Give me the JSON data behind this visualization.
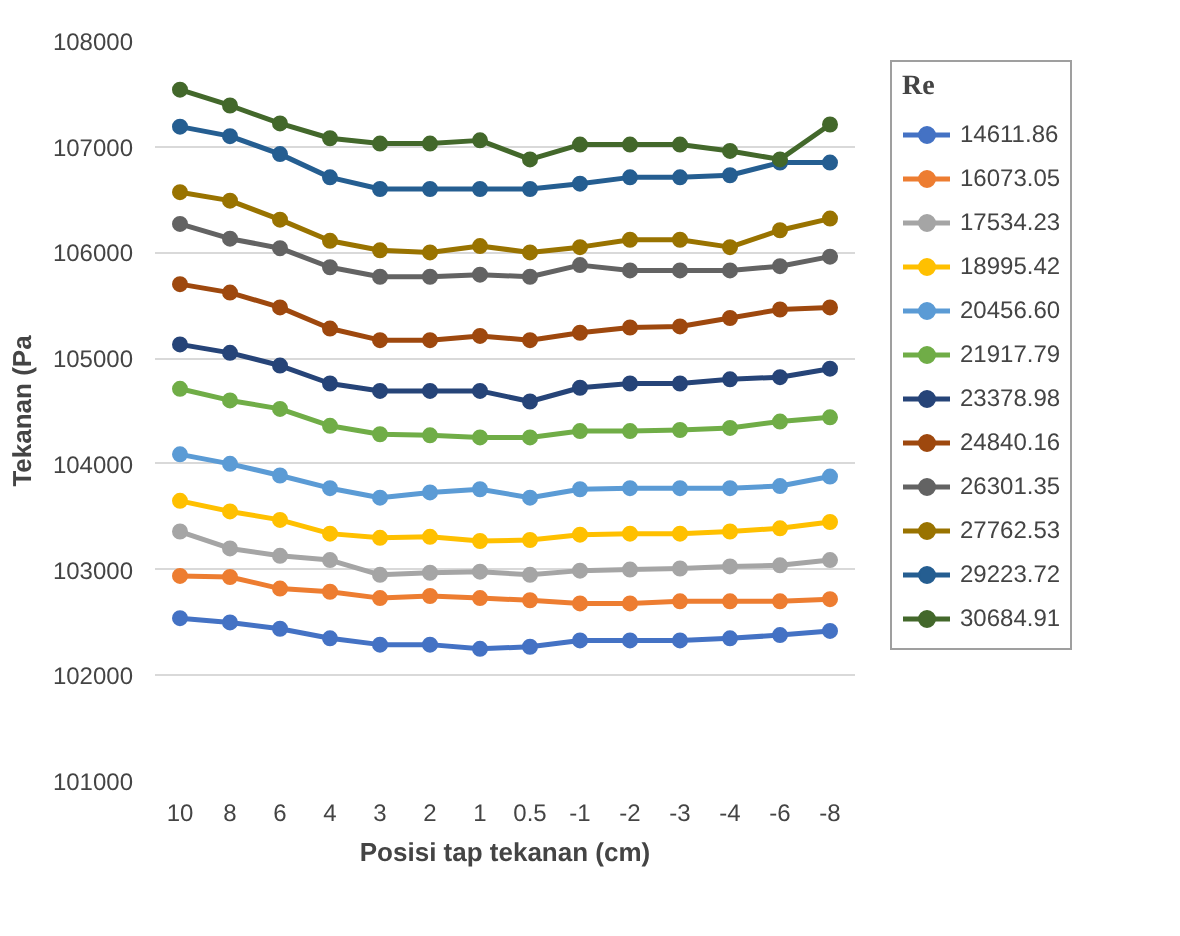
{
  "chart_data": {
    "type": "line",
    "xlabel": "Posisi tap tekanan (cm)",
    "ylabel": "Tekanan (Pa",
    "legend_title": "Re",
    "legend": "right",
    "grid": "y",
    "marker": "circle",
    "line_style": "solid",
    "categories": [
      "10",
      "8",
      "6",
      "4",
      "3",
      "2",
      "1",
      "0.5",
      "-1",
      "-2",
      "-3",
      "-4",
      "-6",
      "-8"
    ],
    "ylim": [
      101000,
      108000
    ],
    "yticks": [
      101000,
      102000,
      103000,
      104000,
      105000,
      106000,
      107000,
      108000
    ],
    "series": [
      {
        "name": "14611.86",
        "color": "#4472c4",
        "values": [
          102540,
          102500,
          102440,
          102350,
          102290,
          102290,
          102250,
          102270,
          102330,
          102330,
          102330,
          102350,
          102380,
          102420
        ]
      },
      {
        "name": "16073.05",
        "color": "#ed7d31",
        "values": [
          102940,
          102930,
          102820,
          102790,
          102730,
          102750,
          102730,
          102710,
          102680,
          102680,
          102700,
          102700,
          102700,
          102720
        ]
      },
      {
        "name": "17534.23",
        "color": "#a5a5a5",
        "values": [
          103360,
          103200,
          103130,
          103090,
          102950,
          102970,
          102980,
          102950,
          102990,
          103000,
          103010,
          103030,
          103040,
          103090
        ]
      },
      {
        "name": "18995.42",
        "color": "#ffc000",
        "values": [
          103650,
          103550,
          103470,
          103340,
          103300,
          103310,
          103270,
          103280,
          103330,
          103340,
          103340,
          103360,
          103390,
          103450
        ]
      },
      {
        "name": "20456.60",
        "color": "#5b9bd5",
        "values": [
          104090,
          104000,
          103890,
          103770,
          103680,
          103730,
          103760,
          103680,
          103760,
          103770,
          103770,
          103770,
          103790,
          103880
        ]
      },
      {
        "name": "21917.79",
        "color": "#70ad47",
        "values": [
          104710,
          104600,
          104520,
          104360,
          104280,
          104270,
          104250,
          104250,
          104310,
          104310,
          104320,
          104340,
          104400,
          104440
        ]
      },
      {
        "name": "23378.98",
        "color": "#264478",
        "values": [
          105130,
          105050,
          104930,
          104760,
          104690,
          104690,
          104690,
          104590,
          104720,
          104760,
          104760,
          104800,
          104820,
          104900
        ]
      },
      {
        "name": "24840.16",
        "color": "#9e480e",
        "values": [
          105700,
          105620,
          105480,
          105280,
          105170,
          105170,
          105210,
          105170,
          105240,
          105290,
          105300,
          105380,
          105460,
          105480
        ]
      },
      {
        "name": "26301.35",
        "color": "#636363",
        "values": [
          106270,
          106130,
          106040,
          105860,
          105770,
          105770,
          105790,
          105770,
          105880,
          105830,
          105830,
          105830,
          105870,
          105960
        ]
      },
      {
        "name": "27762.53",
        "color": "#997300",
        "values": [
          106570,
          106490,
          106310,
          106110,
          106020,
          106000,
          106060,
          106000,
          106050,
          106120,
          106120,
          106050,
          106210,
          106320
        ]
      },
      {
        "name": "29223.72",
        "color": "#255e91",
        "values": [
          107190,
          107100,
          106930,
          106710,
          106600,
          106600,
          106600,
          106600,
          106650,
          106710,
          106710,
          106730,
          106850,
          106850
        ]
      },
      {
        "name": "30684.91",
        "color": "#43682b",
        "values": [
          107540,
          107390,
          107220,
          107080,
          107030,
          107030,
          107060,
          106880,
          107020,
          107020,
          107020,
          106960,
          106880,
          107210
        ]
      }
    ]
  }
}
